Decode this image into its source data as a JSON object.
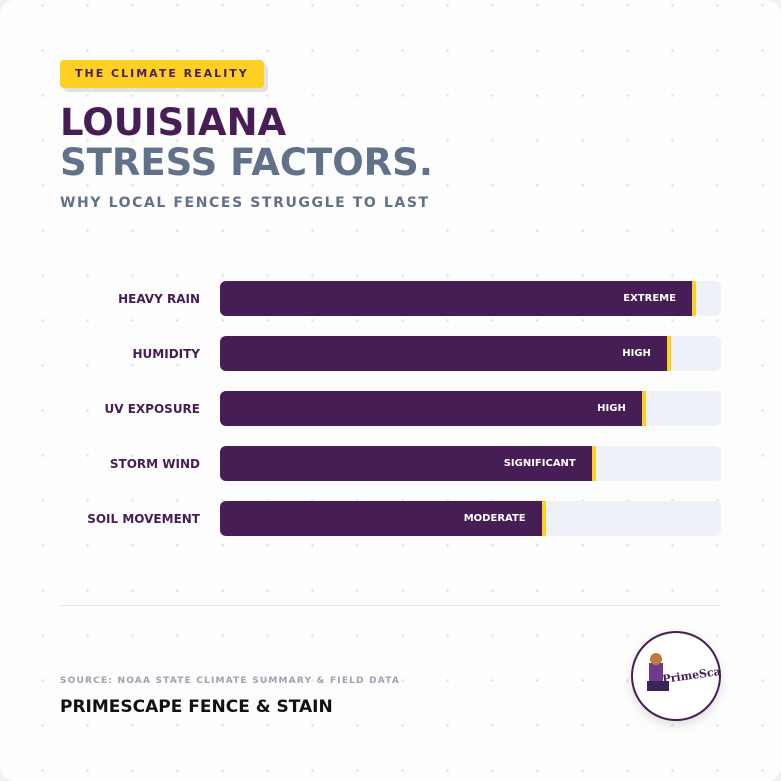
{
  "badge": "THE CLIMATE REALITY",
  "title_line1": "LOUISIANA",
  "title_line2": "STRESS FACTORS.",
  "subtitle": "WHY LOCAL FENCES STRUGGLE TO LAST",
  "chart_data": {
    "type": "bar",
    "orientation": "horizontal",
    "categories": [
      "HEAVY RAIN",
      "HUMIDITY",
      "UV EXPOSURE",
      "STORM WIND",
      "SOIL MOVEMENT"
    ],
    "values": [
      95,
      90,
      85,
      75,
      65
    ],
    "labels": [
      "EXTREME",
      "HIGH",
      "HIGH",
      "SIGNIFICANT",
      "MODERATE"
    ],
    "xlim": [
      0,
      100
    ],
    "colors": {
      "bar": "#461d55",
      "accent": "#fdd023",
      "track": "#eef1f7"
    }
  },
  "footer": {
    "source": "SOURCE: NOAA STATE CLIMATE SUMMARY & FIELD DATA",
    "brand": "PRIMESCAPE FENCE & STAIN",
    "logo_text": "PrimeScape"
  }
}
